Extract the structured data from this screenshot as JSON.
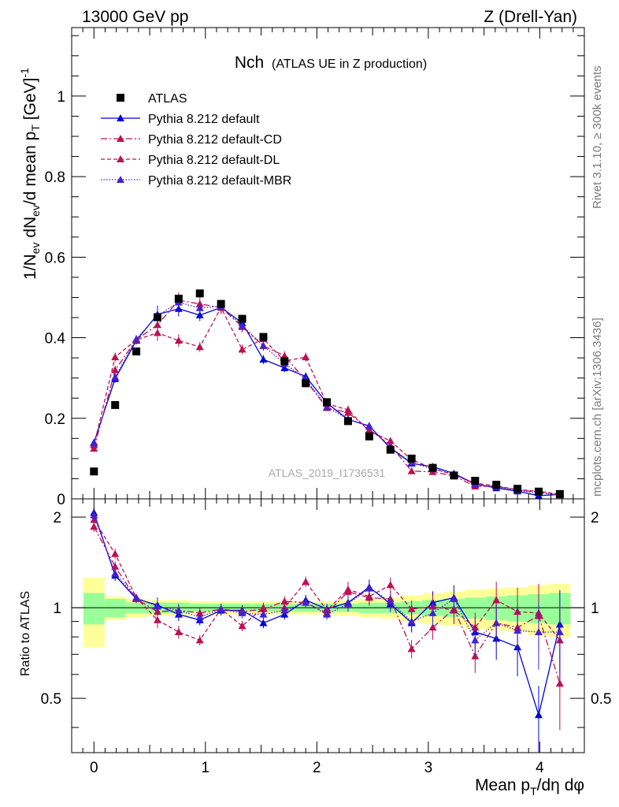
{
  "header": {
    "left": "13000 GeV pp",
    "right": "Z (Drell-Yan)"
  },
  "side_labels": {
    "rivet": "Rivet 3.1.10, ≥ 300k events",
    "mcplots": "mcplots.cern.ch [arXiv:1306.3436]"
  },
  "chart_data": {
    "type": "scatter",
    "title": "Nch",
    "subtitle": "(ATLAS UE in Z production)",
    "watermark": "ATLAS_2019_I1736531",
    "xlabel": "Mean pT/dη dφ",
    "ylabel": "1/Nev dNev/d mean pT [GeV]^-1",
    "ratio_ylabel": "Ratio to ATLAS",
    "xlim": [
      -0.2,
      4.4
    ],
    "ylim": [
      0,
      1.17
    ],
    "ratio_ylim": [
      0.33,
      2.3
    ],
    "x_ticks": [
      "0",
      "1",
      "2",
      "3",
      "4"
    ],
    "y_ticks": [
      "0",
      "0.2",
      "0.4",
      "0.6",
      "0.8",
      "1"
    ],
    "ratio_ticks": [
      "0.5",
      "1",
      "2"
    ],
    "legend_position": "top-left",
    "x": [
      0.0,
      0.19,
      0.38,
      0.57,
      0.76,
      0.95,
      1.14,
      1.33,
      1.52,
      1.71,
      1.9,
      2.09,
      2.28,
      2.47,
      2.66,
      2.85,
      3.04,
      3.23,
      3.42,
      3.61,
      3.8,
      3.99,
      4.18
    ],
    "series": [
      {
        "name": "ATLAS",
        "marker": "square",
        "color": "#000000",
        "values": [
          0.068,
          0.233,
          0.366,
          0.451,
          0.497,
          0.51,
          0.484,
          0.447,
          0.402,
          0.342,
          0.287,
          0.24,
          0.193,
          0.155,
          0.122,
          0.1,
          0.077,
          0.058,
          0.045,
          0.035,
          0.025,
          0.018,
          0.012
        ],
        "band_stat": [
          0.12,
          0.07,
          0.04,
          0.04,
          0.04,
          0.03,
          0.03,
          0.03,
          0.03,
          0.03,
          0.03,
          0.03,
          0.03,
          0.04,
          0.04,
          0.05,
          0.06,
          0.07,
          0.08,
          0.09,
          0.1,
          0.11,
          0.12
        ],
        "band_total": [
          0.26,
          0.09,
          0.07,
          0.06,
          0.06,
          0.05,
          0.05,
          0.05,
          0.05,
          0.05,
          0.05,
          0.05,
          0.06,
          0.07,
          0.08,
          0.1,
          0.12,
          0.13,
          0.15,
          0.16,
          0.17,
          0.19,
          0.2
        ]
      },
      {
        "name": "Pythia 8.212 default",
        "marker": "triangle",
        "color": "#0000dd",
        "dash": "solid",
        "values": [
          0.14,
          0.298,
          0.393,
          0.458,
          0.472,
          0.456,
          0.475,
          0.437,
          0.346,
          0.325,
          0.304,
          0.238,
          0.197,
          0.181,
          0.126,
          0.088,
          0.08,
          0.063,
          0.037,
          0.027,
          0.019,
          0.008,
          0.011
        ],
        "ratio": [
          2.07,
          1.28,
          1.07,
          1.02,
          0.95,
          0.91,
          0.98,
          0.98,
          0.89,
          0.95,
          1.06,
          0.99,
          1.04,
          1.17,
          1.03,
          0.89,
          1.04,
          1.08,
          0.83,
          0.79,
          0.74,
          0.44,
          0.88
        ],
        "ratio_err": [
          0.04,
          0.04,
          0.03,
          0.06,
          0.05,
          0.04,
          0.04,
          0.04,
          0.04,
          0.04,
          0.04,
          0.04,
          0.06,
          0.06,
          0.06,
          0.07,
          0.09,
          0.1,
          0.12,
          0.15,
          0.2,
          0.25,
          0.3
        ]
      },
      {
        "name": "Pythia 8.212 default-CD",
        "marker": "triangle",
        "color": "#bb1155",
        "dash": "dashdot",
        "values": [
          0.125,
          0.32,
          0.395,
          0.432,
          0.493,
          0.484,
          0.475,
          0.427,
          0.38,
          0.355,
          0.294,
          0.226,
          0.214,
          0.172,
          0.133,
          0.069,
          0.067,
          0.057,
          0.031,
          0.031,
          0.022,
          0.017,
          0.009
        ],
        "ratio": [
          1.86,
          1.37,
          1.07,
          0.97,
          0.98,
          0.96,
          0.99,
          0.97,
          0.99,
          1.05,
          1.04,
          0.96,
          1.13,
          1.08,
          1.07,
          0.73,
          0.86,
          0.99,
          0.69,
          0.89,
          0.86,
          0.94,
          0.56
        ],
        "ratio_err": [
          0.04,
          0.04,
          0.03,
          0.06,
          0.05,
          0.04,
          0.04,
          0.04,
          0.04,
          0.04,
          0.04,
          0.04,
          0.06,
          0.06,
          0.06,
          0.07,
          0.09,
          0.1,
          0.12,
          0.15,
          0.2,
          0.25,
          0.3
        ]
      },
      {
        "name": "Pythia 8.212 default-DL",
        "marker": "triangle",
        "color": "#bb1155",
        "dash": "dashed",
        "values": [
          0.133,
          0.352,
          0.395,
          0.412,
          0.393,
          0.377,
          0.475,
          0.371,
          0.397,
          0.342,
          0.352,
          0.236,
          0.221,
          0.168,
          0.144,
          0.097,
          0.076,
          0.059,
          0.039,
          0.032,
          0.023,
          0.019,
          0.011
        ],
        "ratio": [
          1.96,
          1.51,
          1.08,
          0.91,
          0.83,
          0.78,
          0.99,
          0.87,
          1.0,
          1.0,
          1.22,
          0.98,
          1.15,
          1.09,
          1.19,
          0.99,
          1.01,
          0.98,
          0.86,
          1.06,
          0.97,
          0.96,
          0.78
        ],
        "ratio_err": [
          0.04,
          0.04,
          0.03,
          0.06,
          0.05,
          0.04,
          0.04,
          0.04,
          0.04,
          0.04,
          0.04,
          0.04,
          0.06,
          0.06,
          0.06,
          0.07,
          0.09,
          0.1,
          0.12,
          0.15,
          0.2,
          0.25,
          0.3
        ]
      },
      {
        "name": "Pythia 8.212 default-MBR",
        "marker": "triangle",
        "color": "#4422cc",
        "dash": "dotted",
        "values": [
          0.138,
          0.302,
          0.397,
          0.455,
          0.488,
          0.474,
          0.478,
          0.43,
          0.38,
          0.336,
          0.298,
          0.228,
          0.198,
          0.18,
          0.128,
          0.09,
          0.074,
          0.062,
          0.035,
          0.031,
          0.021,
          0.015,
          0.01
        ],
        "ratio": [
          2.03,
          1.3,
          1.08,
          1.01,
          0.98,
          0.93,
          0.99,
          0.96,
          0.95,
          0.98,
          1.04,
          0.95,
          1.03,
          1.16,
          1.05,
          0.9,
          0.96,
          1.07,
          0.78,
          0.89,
          0.84,
          0.83,
          0.83
        ],
        "ratio_err": [
          0.04,
          0.04,
          0.03,
          0.06,
          0.05,
          0.04,
          0.04,
          0.04,
          0.04,
          0.04,
          0.04,
          0.04,
          0.06,
          0.06,
          0.06,
          0.07,
          0.09,
          0.1,
          0.12,
          0.15,
          0.2,
          0.25,
          0.3
        ]
      }
    ]
  }
}
